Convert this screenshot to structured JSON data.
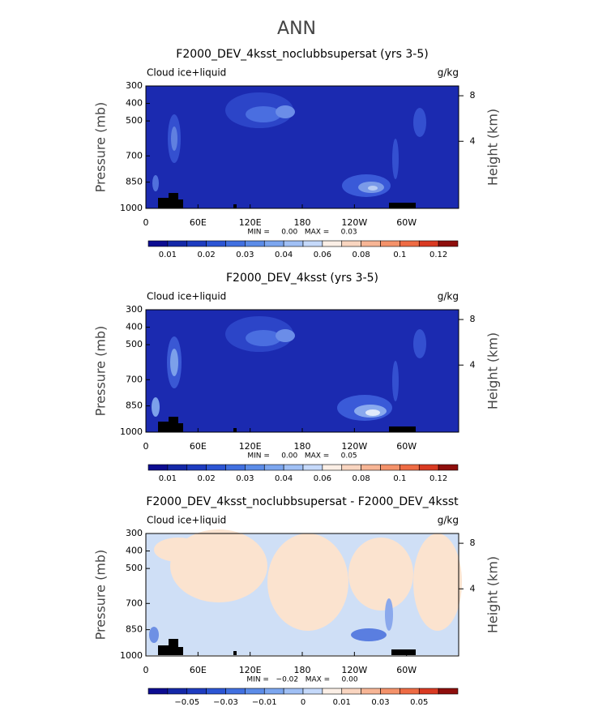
{
  "title": "ANN",
  "panels": [
    {
      "title": "F2000_DEV_4ksst_noclubbsupersat (yrs 3-5)",
      "left_label": "Cloud ice+liquid",
      "right_label": "g/kg",
      "ylabel": "Pressure (mb)",
      "y2label": "Height (km)",
      "ylim": [
        1000,
        300
      ],
      "yticks": [
        300,
        400,
        500,
        700,
        850,
        1000
      ],
      "y2ticks": [
        8,
        4
      ],
      "xlim": [
        0,
        360
      ],
      "xticks": [
        0,
        {
          "value": 60,
          "label": "60E"
        },
        {
          "value": 120,
          "label": "120E"
        },
        180,
        {
          "value": 240,
          "label": "120W"
        },
        {
          "value": 300,
          "label": "60W"
        }
      ],
      "stats": "MIN =     0.00   MAX =     0.03",
      "colorbar": {
        "labels": [
          0.01,
          0.02,
          0.03,
          0.04,
          0.06,
          0.08,
          0.1,
          0.12
        ],
        "label_step": 2,
        "label_start": 1,
        "colors": [
          "#0c0c91",
          "#1428a8",
          "#1e3cc0",
          "#2c55d4",
          "#4170e0",
          "#5c8ce8",
          "#7ca6ef",
          "#a0c0f5",
          "#c5d9fa",
          "#fbefe6",
          "#f9d5c0",
          "#f7b595",
          "#f4926a",
          "#ee6b44",
          "#d93a22",
          "#8e0e0c"
        ]
      }
    },
    {
      "title": "F2000_DEV_4ksst (yrs 3-5)",
      "left_label": "Cloud ice+liquid",
      "right_label": "g/kg",
      "ylabel": "Pressure (mb)",
      "y2label": "Height (km)",
      "ylim": [
        1000,
        300
      ],
      "yticks": [
        300,
        400,
        500,
        700,
        850,
        1000
      ],
      "y2ticks": [
        8,
        4
      ],
      "xlim": [
        0,
        360
      ],
      "xticks": [
        0,
        {
          "value": 60,
          "label": "60E"
        },
        {
          "value": 120,
          "label": "120E"
        },
        180,
        {
          "value": 240,
          "label": "120W"
        },
        {
          "value": 300,
          "label": "60W"
        }
      ],
      "stats": "MIN =     0.00   MAX =     0.05",
      "colorbar": {
        "labels": [
          0.01,
          0.02,
          0.03,
          0.04,
          0.06,
          0.08,
          0.1,
          0.12
        ],
        "label_step": 2,
        "label_start": 1,
        "colors": [
          "#0c0c91",
          "#1428a8",
          "#1e3cc0",
          "#2c55d4",
          "#4170e0",
          "#5c8ce8",
          "#7ca6ef",
          "#a0c0f5",
          "#c5d9fa",
          "#fbefe6",
          "#f9d5c0",
          "#f7b595",
          "#f4926a",
          "#ee6b44",
          "#d93a22",
          "#8e0e0c"
        ]
      }
    },
    {
      "title": "F2000_DEV_4ksst_noclubbsupersat - F2000_DEV_4ksst",
      "left_label": "Cloud ice+liquid",
      "right_label": "g/kg",
      "ylabel": "Pressure (mb)",
      "y2label": "Height (km)",
      "ylim": [
        1000,
        300
      ],
      "yticks": [
        300,
        400,
        500,
        700,
        850,
        1000
      ],
      "y2ticks": [
        8,
        4
      ],
      "xlim": [
        0,
        360
      ],
      "xticks": [
        0,
        {
          "value": 60,
          "label": "60E"
        },
        {
          "value": 120,
          "label": "120E"
        },
        180,
        {
          "value": 240,
          "label": "120W"
        },
        {
          "value": 300,
          "label": "60W"
        }
      ],
      "stats": "MIN =   −0.02   MAX =     0.00",
      "colorbar": {
        "labels": [
          {
            "value": -0.05,
            "label": "−0.05"
          },
          {
            "value": -0.03,
            "label": "−0.03"
          },
          {
            "value": -0.01,
            "label": "−0.01"
          },
          0,
          0.01,
          0.03,
          0.05
        ],
        "label_step": 2,
        "label_start": 2,
        "colors": [
          "#0c0c91",
          "#1428a8",
          "#1e3cc0",
          "#2c55d4",
          "#4170e0",
          "#5c8ce8",
          "#7ca6ef",
          "#a0c0f5",
          "#c5d9fa",
          "#fbefe6",
          "#f9d5c0",
          "#f7b595",
          "#f4926a",
          "#ee6b44",
          "#d93a22",
          "#8e0e0c"
        ]
      }
    }
  ]
}
